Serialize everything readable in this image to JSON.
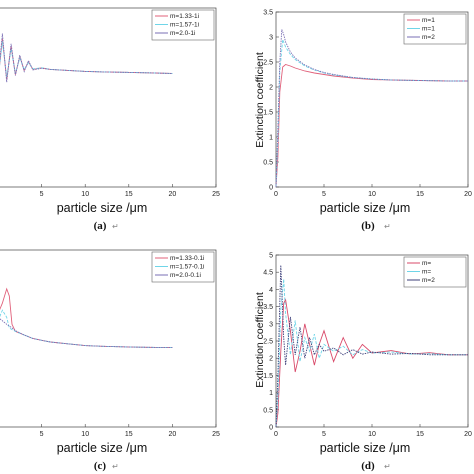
{
  "chart_data": [
    {
      "type": "line",
      "caption": "(a)",
      "xlabel": "particle size /μm",
      "ylabel": "",
      "xlim": [
        0,
        25
      ],
      "xticks": [
        5,
        10,
        15,
        20,
        25
      ],
      "ylim": [
        0,
        3.5
      ],
      "yticks": [],
      "legend": "top-right",
      "series": [
        {
          "name": "m=1.33-1i",
          "color": "#e0607a",
          "x": [
            0,
            0.5,
            1,
            1.5,
            2,
            2.5,
            3,
            3.5,
            4,
            5,
            6,
            8,
            10,
            12,
            15,
            18,
            20
          ],
          "y": [
            2.1,
            2.9,
            2.1,
            2.75,
            2.2,
            2.55,
            2.28,
            2.45,
            2.3,
            2.33,
            2.3,
            2.28,
            2.26,
            2.25,
            2.24,
            2.23,
            2.22
          ]
        },
        {
          "name": "m=1.57-1i",
          "color": "#6fd5e8",
          "x": [
            0,
            0.5,
            1,
            1.5,
            2,
            2.5,
            3,
            3.5,
            4,
            5,
            6,
            8,
            10,
            12,
            15,
            18,
            20
          ],
          "y": [
            2.1,
            2.85,
            2.15,
            2.7,
            2.22,
            2.52,
            2.3,
            2.43,
            2.31,
            2.33,
            2.3,
            2.28,
            2.26,
            2.25,
            2.24,
            2.23,
            2.22
          ]
        },
        {
          "name": "m=2.0-1i",
          "color": "#7a6fb5",
          "x": [
            0,
            0.5,
            1,
            1.5,
            2,
            2.5,
            3,
            3.5,
            4,
            5,
            6,
            8,
            10,
            12,
            15,
            18,
            20
          ],
          "y": [
            2.1,
            3.0,
            2.05,
            2.8,
            2.18,
            2.58,
            2.26,
            2.47,
            2.29,
            2.32,
            2.3,
            2.28,
            2.26,
            2.25,
            2.24,
            2.23,
            2.22
          ]
        }
      ]
    },
    {
      "type": "line",
      "caption": "(b)",
      "xlabel": "particle size /μm",
      "ylabel": "Extinction coefficient",
      "xlim": [
        0,
        20
      ],
      "xticks": [
        0,
        5,
        10,
        15,
        20
      ],
      "ylim": [
        0,
        3.5
      ],
      "yticks": [
        0,
        0.5,
        1,
        1.5,
        2,
        2.5,
        3,
        3.5
      ],
      "legend": "top-right",
      "series": [
        {
          "name": "m=1",
          "color": "#e0607a",
          "x": [
            0,
            0.2,
            0.4,
            0.7,
            1,
            1.5,
            2,
            3,
            4,
            5,
            6,
            8,
            10,
            12,
            15,
            18,
            20
          ],
          "y": [
            0,
            0.6,
            1.9,
            2.4,
            2.45,
            2.42,
            2.38,
            2.32,
            2.28,
            2.25,
            2.22,
            2.18,
            2.15,
            2.14,
            2.13,
            2.12,
            2.12
          ]
        },
        {
          "name": "m=1",
          "color": "#6fd5e8",
          "x": [
            0,
            0.2,
            0.4,
            0.7,
            1,
            1.5,
            2,
            3,
            4,
            5,
            6,
            8,
            10,
            12,
            15,
            18,
            20
          ],
          "y": [
            0,
            0.9,
            2.3,
            2.95,
            2.8,
            2.65,
            2.55,
            2.42,
            2.34,
            2.28,
            2.24,
            2.19,
            2.16,
            2.14,
            2.13,
            2.12,
            2.12
          ]
        },
        {
          "name": "m=2",
          "color": "#7a6fb5",
          "x": [
            0,
            0.2,
            0.4,
            0.6,
            0.8,
            1,
            1.5,
            2,
            3,
            4,
            5,
            6,
            8,
            10,
            12,
            15,
            18,
            20
          ],
          "y": [
            0,
            1.2,
            2.5,
            3.15,
            3.05,
            2.9,
            2.7,
            2.58,
            2.44,
            2.35,
            2.29,
            2.25,
            2.19,
            2.16,
            2.14,
            2.13,
            2.12,
            2.12
          ]
        }
      ]
    },
    {
      "type": "line",
      "caption": "(c)",
      "xlabel": "particle size /μm",
      "ylabel": "",
      "xlim": [
        0,
        25
      ],
      "xticks": [
        5,
        10,
        15,
        20,
        25
      ],
      "ylim": [
        0,
        5
      ],
      "yticks": [],
      "legend": "top-right",
      "series": [
        {
          "name": "m=1.33-0.1i",
          "color": "#e0607a",
          "x": [
            0,
            0.5,
            1,
            1.3,
            1.6,
            2,
            3,
            4,
            5,
            6,
            8,
            10,
            12,
            15,
            18,
            20
          ],
          "y": [
            3.2,
            3.5,
            3.9,
            3.7,
            2.9,
            2.7,
            2.6,
            2.5,
            2.45,
            2.4,
            2.35,
            2.3,
            2.28,
            2.26,
            2.25,
            2.25
          ]
        },
        {
          "name": "m=1.57-0.1i",
          "color": "#6fd5e8",
          "x": [
            0,
            0.5,
            1,
            1.3,
            1.6,
            2,
            3,
            4,
            5,
            6,
            8,
            10,
            12,
            15,
            18,
            20
          ],
          "y": [
            3.0,
            3.3,
            3.1,
            2.8,
            2.75,
            2.7,
            2.6,
            2.5,
            2.45,
            2.4,
            2.35,
            2.3,
            2.28,
            2.26,
            2.25,
            2.25
          ]
        },
        {
          "name": "m=2.0-0.1i",
          "color": "#7a6fb5",
          "x": [
            0,
            0.5,
            1,
            1.3,
            1.6,
            2,
            3,
            4,
            5,
            6,
            8,
            10,
            12,
            15,
            18,
            20
          ],
          "y": [
            3.1,
            3.0,
            2.9,
            2.85,
            2.8,
            2.72,
            2.6,
            2.5,
            2.45,
            2.4,
            2.35,
            2.3,
            2.28,
            2.26,
            2.25,
            2.25
          ]
        }
      ]
    },
    {
      "type": "line",
      "caption": "(d)",
      "xlabel": "particle size /μm",
      "ylabel": "Extinction coefficient",
      "xlim": [
        0,
        20
      ],
      "xticks": [
        0,
        5,
        10,
        15,
        20
      ],
      "ylim": [
        0,
        5
      ],
      "yticks": [
        0,
        0.5,
        1,
        1.5,
        2,
        2.5,
        3,
        3.5,
        4,
        4.5,
        5
      ],
      "legend": "top-right",
      "series": [
        {
          "name": "m=",
          "color": "#d94a6a",
          "x": [
            0,
            0.2,
            0.5,
            0.8,
            1.0,
            1.5,
            2,
            2.5,
            3,
            3.5,
            4,
            4.5,
            5,
            6,
            7,
            8,
            9,
            10,
            12,
            14,
            16,
            18,
            20
          ],
          "y": [
            0,
            0.4,
            2.2,
            3.6,
            3.7,
            2.8,
            1.6,
            2.2,
            3.0,
            2.4,
            1.8,
            2.4,
            2.8,
            1.9,
            2.6,
            2.0,
            2.4,
            2.15,
            2.22,
            2.12,
            2.16,
            2.1,
            2.1
          ]
        },
        {
          "name": "m=",
          "color": "#6fd5e8",
          "x": [
            0,
            0.2,
            0.5,
            0.8,
            1.0,
            1.5,
            2,
            2.5,
            3,
            3.5,
            4,
            4.5,
            5,
            6,
            7,
            8,
            9,
            10,
            12,
            14,
            16,
            18,
            20
          ],
          "y": [
            0,
            0.8,
            3.4,
            4.3,
            3.3,
            2.1,
            3.1,
            1.9,
            2.6,
            2.2,
            2.7,
            2.0,
            2.4,
            2.2,
            2.35,
            2.1,
            2.25,
            2.15,
            2.18,
            2.12,
            2.13,
            2.1,
            2.1
          ]
        },
        {
          "name": "m=2",
          "color": "#3c3f7a",
          "x": [
            0,
            0.2,
            0.5,
            0.8,
            1.0,
            1.5,
            2,
            2.5,
            3,
            3.5,
            4,
            4.5,
            5,
            6,
            7,
            8,
            9,
            10,
            12,
            14,
            16,
            18,
            20
          ],
          "y": [
            0,
            1.5,
            4.7,
            2.6,
            1.8,
            3.2,
            2.1,
            2.9,
            2.0,
            2.6,
            2.1,
            2.4,
            2.2,
            2.3,
            2.1,
            2.25,
            2.12,
            2.18,
            2.12,
            2.14,
            2.1,
            2.1,
            2.1
          ]
        }
      ]
    }
  ]
}
